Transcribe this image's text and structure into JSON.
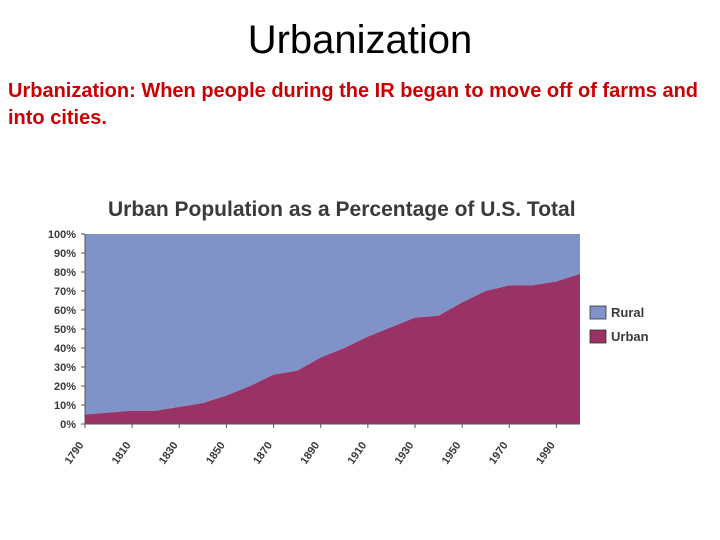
{
  "slide": {
    "title": "Urbanization",
    "body": "Urbanization:  When people during the IR began to move off of farms and into cities."
  },
  "chart_data": {
    "type": "area",
    "stacked": true,
    "title": "Urban Population as a Percentage of U.S. Total",
    "xlabel": "",
    "ylabel": "",
    "ylim": [
      0,
      100
    ],
    "y_ticks": [
      "0%",
      "10%",
      "20%",
      "30%",
      "40%",
      "50%",
      "60%",
      "70%",
      "80%",
      "90%",
      "100%"
    ],
    "x_ticks": [
      "1790",
      "1810",
      "1830",
      "1850",
      "1870",
      "1890",
      "1910",
      "1930",
      "1950",
      "1970",
      "1990"
    ],
    "x": [
      1790,
      1800,
      1810,
      1820,
      1830,
      1840,
      1850,
      1860,
      1870,
      1880,
      1890,
      1900,
      1910,
      1920,
      1930,
      1940,
      1950,
      1960,
      1970,
      1980,
      1990,
      2000
    ],
    "series": [
      {
        "name": "Urban",
        "color": "#993366",
        "values": [
          5,
          6,
          7,
          7,
          9,
          11,
          15,
          20,
          26,
          28,
          35,
          40,
          46,
          51,
          56,
          57,
          64,
          70,
          73,
          73,
          75,
          79
        ]
      },
      {
        "name": "Rural",
        "color": "#7f93c8",
        "values": [
          95,
          94,
          93,
          93,
          91,
          89,
          85,
          80,
          74,
          72,
          65,
          60,
          54,
          49,
          44,
          43,
          36,
          30,
          27,
          27,
          25,
          21
        ]
      }
    ],
    "legend": {
      "placement": "right",
      "entries": [
        "Rural",
        "Urban"
      ]
    }
  }
}
